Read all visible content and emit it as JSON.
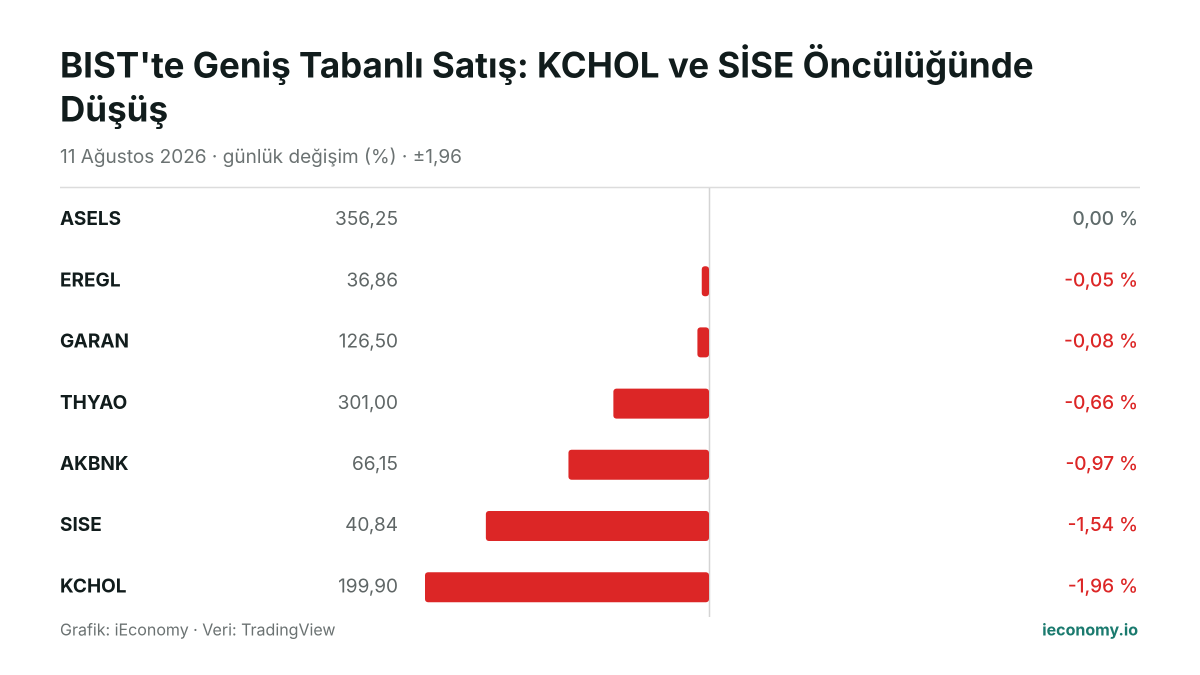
{
  "chart_data": {
    "type": "bar",
    "title_lines": [
      "BIST'te Geniş Tabanlı Satış: KCHOL ve SİSE Öncülüğünde",
      "Düşüş"
    ],
    "subtitle": "11 Ağustos 2026 · günlük değişim (%) · ±1,96",
    "categories": [
      "ASELS",
      "EREGL",
      "GARAN",
      "THYAO",
      "AKBNK",
      "SISE",
      "KCHOL"
    ],
    "prices": [
      "356,25",
      "36,86",
      "126,50",
      "301,00",
      "66,15",
      "40,84",
      "199,90"
    ],
    "values": [
      0,
      -0.05,
      -0.08,
      -0.66,
      -0.97,
      -1.54,
      -1.96
    ],
    "value_labels": [
      "0,00 %",
      "-0,05 %",
      "-0,08 %",
      "-0,66 %",
      "-0,97 %",
      "-1,54 %",
      "-1,96 %"
    ],
    "xlim": [
      -1.96,
      1.96
    ],
    "negative_color": "#dc2626",
    "neutral_color": "#5f6b6b",
    "source": "Grafik: iEconomy · Veri: TradingView",
    "brand": "ieconomy.io"
  }
}
